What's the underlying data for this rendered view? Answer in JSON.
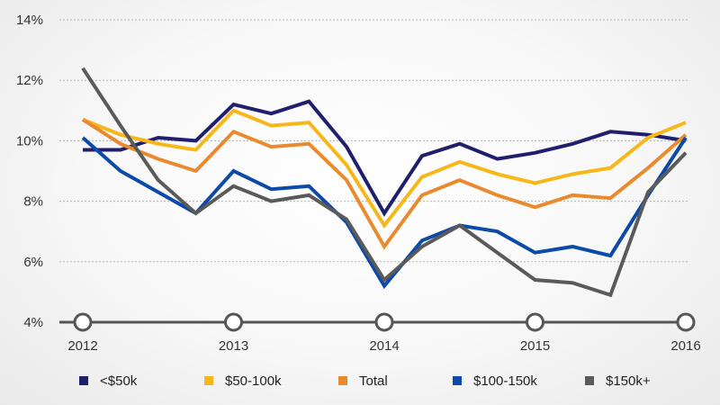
{
  "chart_data": {
    "type": "line",
    "title": "",
    "xlabel": "",
    "ylabel": "",
    "ylim": [
      4,
      14
    ],
    "y_ticks": [
      {
        "value": 4,
        "label": "4%"
      },
      {
        "value": 6,
        "label": "6%"
      },
      {
        "value": 8,
        "label": "8%"
      },
      {
        "value": 10,
        "label": "10%"
      },
      {
        "value": 12,
        "label": "12%"
      },
      {
        "value": 14,
        "label": "14%"
      }
    ],
    "xlim": [
      2012,
      2016
    ],
    "x_ticks": [
      {
        "value": 2012,
        "label": "2012"
      },
      {
        "value": 2013,
        "label": "2013"
      },
      {
        "value": 2014,
        "label": "2014"
      },
      {
        "value": 2015,
        "label": "2015"
      },
      {
        "value": 2016,
        "label": "2016"
      }
    ],
    "x": [
      2012.0,
      2012.25,
      2012.5,
      2012.75,
      2013.0,
      2013.25,
      2013.5,
      2013.75,
      2014.0,
      2014.25,
      2014.5,
      2014.75,
      2015.0,
      2015.25,
      2015.5,
      2015.75,
      2016.0
    ],
    "grid": true,
    "legend_position": "bottom",
    "series": [
      {
        "name": "<$50k",
        "color": "#1f1f6e",
        "values": [
          9.7,
          9.7,
          10.1,
          10.0,
          11.2,
          10.9,
          11.3,
          9.8,
          7.6,
          9.5,
          9.9,
          9.4,
          9.6,
          9.9,
          10.3,
          10.2,
          10.0
        ]
      },
      {
        "name": "$50-100k",
        "color": "#f7b718",
        "values": [
          10.7,
          10.2,
          9.9,
          9.7,
          11.0,
          10.5,
          10.6,
          9.2,
          7.2,
          8.8,
          9.3,
          8.9,
          8.6,
          8.9,
          9.1,
          10.1,
          10.6
        ]
      },
      {
        "name": "Total",
        "color": "#ea8a2e",
        "values": [
          10.7,
          9.9,
          9.4,
          9.0,
          10.3,
          9.8,
          9.9,
          8.7,
          6.5,
          8.2,
          8.7,
          8.2,
          7.8,
          8.2,
          8.1,
          9.1,
          10.2
        ]
      },
      {
        "name": "$100-150k",
        "color": "#0b4aa8",
        "values": [
          10.1,
          9.0,
          8.3,
          7.6,
          9.0,
          8.4,
          8.5,
          7.3,
          5.2,
          6.7,
          7.2,
          7.0,
          6.3,
          6.5,
          6.2,
          8.2,
          10.1
        ]
      },
      {
        "name": "$150k+",
        "color": "#5a5a5a",
        "values": [
          12.4,
          10.5,
          8.7,
          7.6,
          8.5,
          8.0,
          8.2,
          7.4,
          5.4,
          6.5,
          7.2,
          6.3,
          5.4,
          5.3,
          4.9,
          8.3,
          9.6
        ]
      }
    ]
  }
}
